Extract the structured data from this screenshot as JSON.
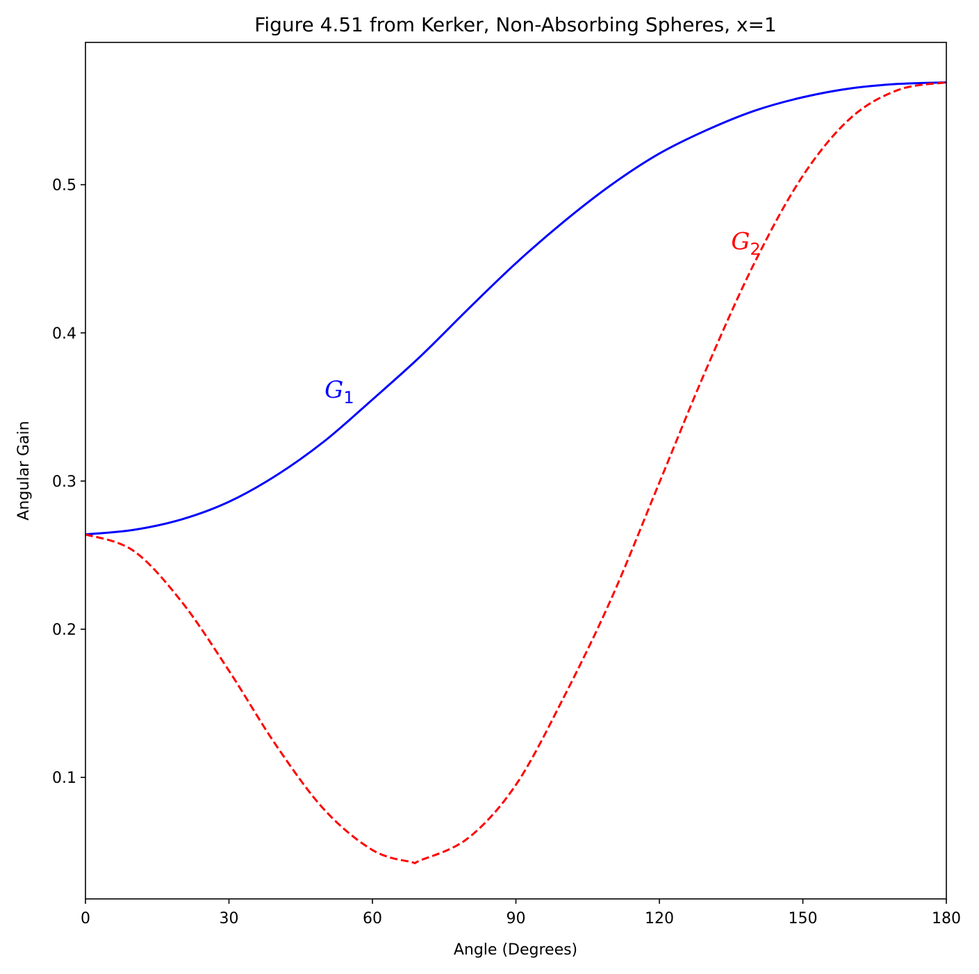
{
  "chart_data": {
    "type": "line",
    "title": "Figure 4.51 from Kerker, Non-Absorbing Spheres, x=1",
    "xlabel": "Angle (Degrees)",
    "ylabel": "Angular Gain",
    "xlim": [
      0,
      180
    ],
    "ylim": [
      0.018,
      0.596
    ],
    "xticks": [
      0,
      30,
      60,
      90,
      120,
      150,
      180
    ],
    "xtick_labels": [
      "0",
      "30",
      "60",
      "90",
      "120",
      "150",
      "180"
    ],
    "yticks": [
      0.1,
      0.2,
      0.3,
      0.4,
      0.5
    ],
    "ytick_labels": [
      "0.1",
      "0.2",
      "0.3",
      "0.4",
      "0.5"
    ],
    "grid": false,
    "series": [
      {
        "name": "G1",
        "color": "#0000ff",
        "style": "solid",
        "x": [
          0,
          10,
          20,
          30,
          40,
          50,
          60,
          70,
          80,
          90,
          100,
          110,
          120,
          130,
          140,
          150,
          160,
          170,
          180
        ],
        "y": [
          0.264,
          0.267,
          0.274,
          0.286,
          0.304,
          0.327,
          0.355,
          0.384,
          0.416,
          0.447,
          0.475,
          0.5,
          0.521,
          0.537,
          0.55,
          0.559,
          0.565,
          0.568,
          0.569
        ]
      },
      {
        "name": "G2",
        "color": "#ff0000",
        "style": "dashed",
        "x": [
          0,
          10,
          20,
          30,
          40,
          50,
          60,
          68,
          70,
          80,
          90,
          100,
          110,
          120,
          130,
          140,
          150,
          160,
          170,
          180
        ],
        "y": [
          0.264,
          0.253,
          0.219,
          0.172,
          0.121,
          0.078,
          0.051,
          0.043,
          0.044,
          0.059,
          0.095,
          0.154,
          0.221,
          0.299,
          0.377,
          0.448,
          0.506,
          0.545,
          0.564,
          0.569
        ]
      }
    ],
    "annotations": [
      {
        "main": "G",
        "sub": "1",
        "color": "#0000ff",
        "x": 50,
        "y": 0.362
      },
      {
        "main": "G",
        "sub": "2",
        "color": "#ff0000",
        "x": 135,
        "y": 0.462
      }
    ]
  }
}
